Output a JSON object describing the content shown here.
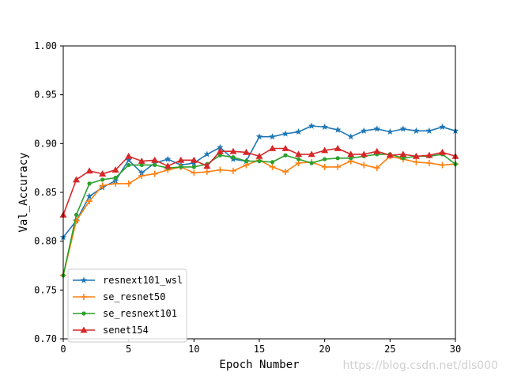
{
  "chart_data": {
    "type": "line",
    "title": "",
    "xlabel": "Epoch Number",
    "ylabel": "Val_Accuracy",
    "xlim": [
      0,
      30
    ],
    "ylim": [
      0.7,
      1.0
    ],
    "xticks": [
      0,
      5,
      10,
      15,
      20,
      25,
      30
    ],
    "yticks": [
      0.7,
      0.75,
      0.8,
      0.85,
      0.9,
      0.95,
      1.0
    ],
    "xtick_labels": [
      "0",
      "5",
      "10",
      "15",
      "20",
      "25",
      "30"
    ],
    "ytick_labels": [
      "0.70",
      "0.75",
      "0.80",
      "0.85",
      "0.90",
      "0.95",
      "1.00"
    ],
    "grid": false,
    "legend_position": "lower-left",
    "x": [
      0,
      1,
      2,
      3,
      4,
      5,
      6,
      7,
      8,
      9,
      10,
      11,
      12,
      13,
      14,
      15,
      16,
      17,
      18,
      19,
      20,
      21,
      22,
      23,
      24,
      25,
      26,
      27,
      28,
      29,
      30
    ],
    "series": [
      {
        "name": "resnext101_wsl",
        "color": "#1f77b4",
        "marker": "star",
        "values": [
          0.804,
          0.821,
          0.846,
          0.855,
          0.862,
          0.883,
          0.87,
          0.88,
          0.884,
          0.878,
          0.88,
          0.889,
          0.896,
          0.884,
          0.882,
          0.907,
          0.907,
          0.91,
          0.912,
          0.918,
          0.917,
          0.914,
          0.907,
          0.913,
          0.915,
          0.912,
          0.915,
          0.913,
          0.913,
          0.917,
          0.913
        ]
      },
      {
        "name": "se_resnet50",
        "color": "#ff7f0e",
        "marker": "plus",
        "values": [
          0.765,
          0.821,
          0.841,
          0.857,
          0.859,
          0.859,
          0.867,
          0.869,
          0.873,
          0.876,
          0.87,
          0.871,
          0.873,
          0.872,
          0.878,
          0.883,
          0.876,
          0.871,
          0.88,
          0.881,
          0.876,
          0.876,
          0.882,
          0.878,
          0.875,
          0.887,
          0.884,
          0.881,
          0.88,
          0.878,
          0.879
        ]
      },
      {
        "name": "se_resnext101",
        "color": "#2ca02c",
        "marker": "circle",
        "values": [
          0.765,
          0.827,
          0.859,
          0.863,
          0.865,
          0.878,
          0.878,
          0.878,
          0.875,
          0.876,
          0.876,
          0.879,
          0.888,
          0.886,
          0.882,
          0.882,
          0.881,
          0.888,
          0.884,
          0.88,
          0.884,
          0.885,
          0.885,
          0.887,
          0.889,
          0.889,
          0.885,
          0.887,
          0.887,
          0.889,
          0.879
        ]
      },
      {
        "name": "senet154",
        "color": "#d62728",
        "marker": "triangle",
        "values": [
          0.827,
          0.863,
          0.872,
          0.869,
          0.873,
          0.887,
          0.882,
          0.883,
          0.877,
          0.883,
          0.883,
          0.877,
          0.892,
          0.892,
          0.891,
          0.887,
          0.895,
          0.895,
          0.889,
          0.889,
          0.893,
          0.895,
          0.889,
          0.889,
          0.892,
          0.888,
          0.889,
          0.887,
          0.888,
          0.891,
          0.887
        ]
      }
    ]
  },
  "watermark": "https://blog.csdn.net/dls000"
}
